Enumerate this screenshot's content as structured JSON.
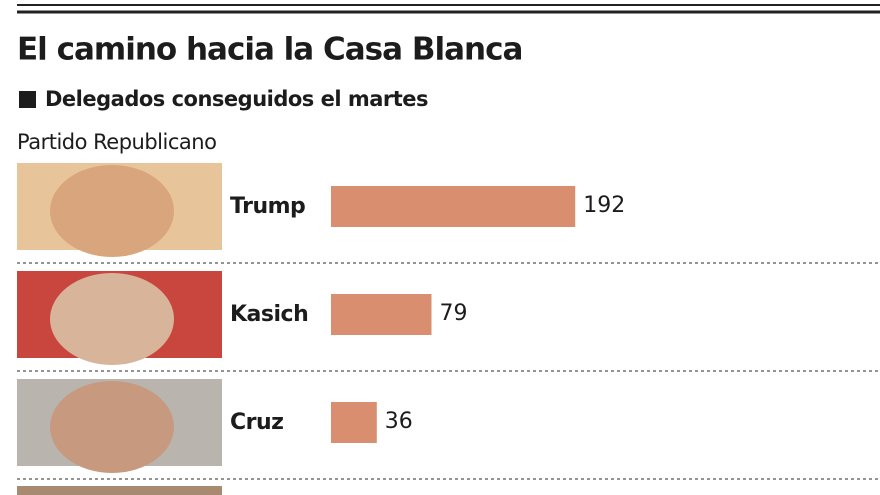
{
  "chart_data": {
    "type": "bar",
    "title": "El camino hacia la Casa Blanca",
    "subtitle": "Delegados conseguidos el martes",
    "group_label": "Partido Republicano",
    "categories": [
      "Trump",
      "Kasich",
      "Cruz"
    ],
    "values": [
      192,
      79,
      36
    ],
    "color": "#d98f6f"
  }
}
